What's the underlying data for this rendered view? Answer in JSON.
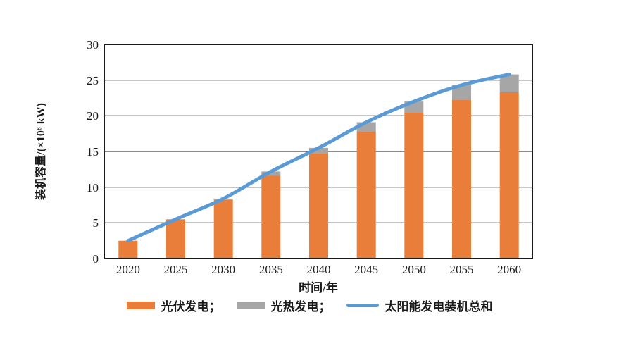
{
  "chart_data": {
    "type": "bar",
    "subtype": "stacked-bar-with-line",
    "categories": [
      "2020",
      "2025",
      "2030",
      "2035",
      "2040",
      "2045",
      "2050",
      "2055",
      "2060"
    ],
    "series": [
      {
        "name": "光伏发电",
        "kind": "bar",
        "color": "#E87E39",
        "values": [
          2.5,
          5.5,
          8.2,
          11.6,
          14.7,
          17.8,
          20.5,
          22.2,
          23.3
        ]
      },
      {
        "name": "光热发电",
        "kind": "bar",
        "color": "#A6A6A6",
        "values": [
          0,
          0,
          0.2,
          0.6,
          0.8,
          1.3,
          1.5,
          2.1,
          2.5
        ]
      },
      {
        "name": "太阳能发电装机总和",
        "kind": "line",
        "color": "#5B9BD5",
        "values": [
          2.5,
          5.5,
          8.4,
          12.2,
          15.5,
          19.1,
          22.0,
          24.3,
          25.8
        ]
      }
    ],
    "title": "",
    "xlabel": "时间/年",
    "ylabel": "装机容量/(×10⁸ kW)",
    "ylim": [
      0,
      30
    ],
    "ytick_step": 5,
    "yticks": [
      "0",
      "5",
      "10",
      "15",
      "20",
      "25",
      "30"
    ],
    "grid": "horizontal",
    "axis_color": "#1a1a1a",
    "legend_position": "bottom"
  },
  "legend": {
    "items": [
      {
        "label": "光伏发电；",
        "swatch": "bar",
        "color": "#E87E39"
      },
      {
        "label": "光热发电；",
        "swatch": "bar",
        "color": "#A6A6A6"
      },
      {
        "label": "太阳能发电装机总和",
        "swatch": "line",
        "color": "#5B9BD5"
      }
    ]
  }
}
